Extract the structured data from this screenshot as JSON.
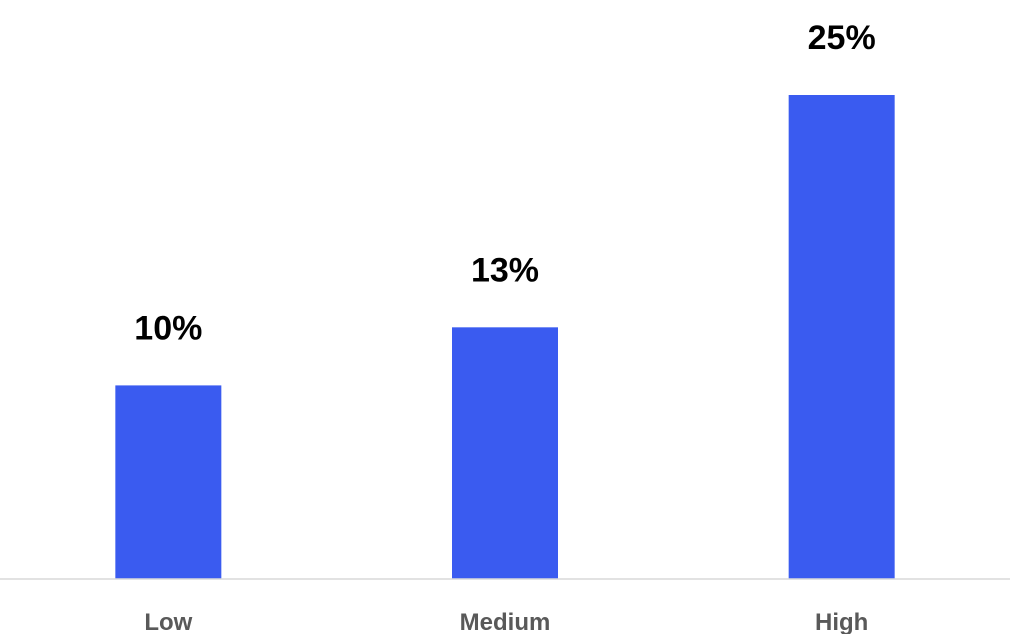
{
  "chart_data": {
    "type": "bar",
    "categories": [
      "Low",
      "Medium",
      "High"
    ],
    "values": [
      10,
      13,
      25
    ],
    "value_labels": [
      "10%",
      "13%",
      "25%"
    ],
    "title": "",
    "xlabel": "",
    "ylabel": "",
    "ylim": [
      0,
      25
    ],
    "grid": false,
    "legend": "none",
    "bar_color": "#3A5BF0",
    "axis_color": "#D9D9D9"
  }
}
